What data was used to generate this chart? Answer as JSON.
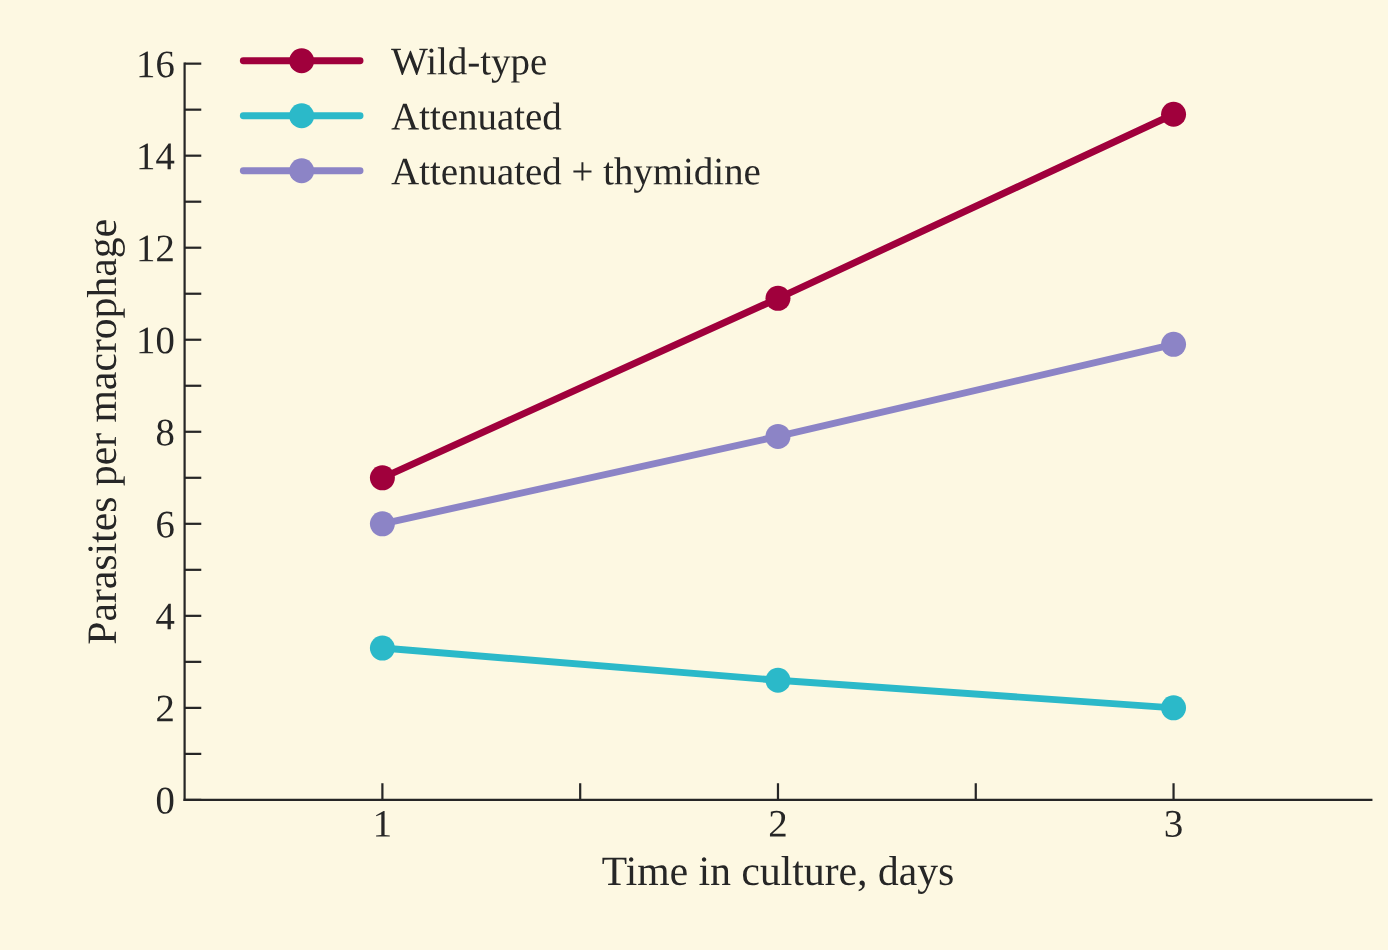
{
  "chart_data": {
    "type": "line",
    "xlabel": "Time in culture, days",
    "ylabel": "Parasites per macrophage",
    "x": [
      1,
      2,
      3
    ],
    "series": [
      {
        "name": "Wild-type",
        "color": "#a0003c",
        "values": [
          7.0,
          10.9,
          14.9
        ]
      },
      {
        "name": "Attenuated",
        "color": "#2bb9c9",
        "values": [
          3.3,
          2.6,
          2.0
        ]
      },
      {
        "name": "Attenuated + thymidine",
        "color": "#8c84c6",
        "values": [
          6.0,
          7.9,
          9.9
        ]
      }
    ],
    "xlim": [
      0.5,
      3.5
    ],
    "xticks": [
      1,
      {
        "value": 1.5,
        "label": null
      },
      2,
      {
        "value": 2.5,
        "label": null
      },
      3
    ],
    "ylim": [
      0,
      16
    ],
    "yticks": [
      0,
      {
        "value": 1,
        "label": null
      },
      2,
      {
        "value": 3,
        "label": null
      },
      4,
      {
        "value": 5,
        "label": null
      },
      6,
      {
        "value": 7,
        "label": null
      },
      8,
      {
        "value": 9,
        "label": null
      },
      10,
      {
        "value": 11,
        "label": null
      },
      12,
      {
        "value": 13,
        "label": null
      },
      14,
      {
        "value": 15,
        "label": null
      },
      16
    ],
    "marker": "circle",
    "line_style": "solid",
    "legend": "top left",
    "grid": false
  }
}
